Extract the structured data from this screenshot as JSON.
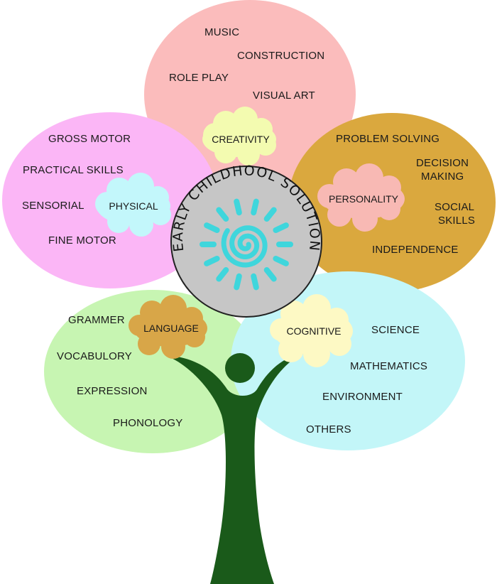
{
  "logo": {
    "text": "EARLY CHILDHOOL SOLUTION",
    "ring_color": "#c6c6c6",
    "sun_color": "#3fd6dc"
  },
  "petals": {
    "creativity": {
      "color": "#fbbcbc",
      "cloud_color": "#f3fbb0",
      "cloud_label": "CREATIVITY",
      "items": [
        "MUSIC",
        "CONSTRUCTION",
        "ROLE PLAY",
        "VISUAL ART"
      ]
    },
    "physical": {
      "color": "#fbb6f6",
      "cloud_color": "#c3f7fb",
      "cloud_label": "PHYSICAL",
      "items": [
        "GROSS MOTOR",
        "PRACTICAL SKILLS",
        "SENSORIAL",
        "FINE MOTOR"
      ]
    },
    "personality": {
      "color": "#daa83e",
      "cloud_color": "#f8b9b4",
      "cloud_label": "PERSONALITY",
      "items": [
        "PROBLEM SOLVING",
        "DECISION",
        "MAKING",
        "SOCIAL",
        "SKILLS",
        "INDEPENDENCE"
      ]
    },
    "language": {
      "color": "#c7f5b2",
      "cloud_color": "#d8a648",
      "cloud_label": "LANGUAGE",
      "items": [
        "GRAMMER",
        "VOCABULORY",
        "EXPRESSION",
        "PHONOLOGY"
      ]
    },
    "cognitive": {
      "color": "#c3f6f8",
      "cloud_color": "#fdf9c4",
      "cloud_label": "COGNITIVE",
      "items": [
        "SCIENCE",
        "MATHEMATICS",
        "ENVIRONMENT",
        "OTHERS"
      ]
    }
  },
  "trunk_color": "#1a5a1a"
}
